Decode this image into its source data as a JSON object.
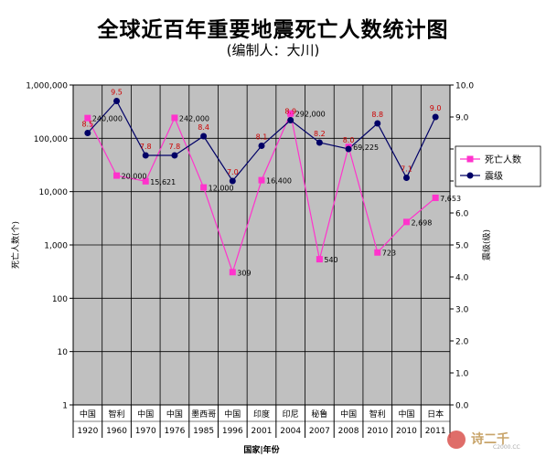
{
  "title": "全球近百年重要地震死亡人数统计图",
  "subtitle": "(编制人：大川)",
  "watermark": {
    "text": "诗二千",
    "sub": "C2000.CC"
  },
  "chart_data": {
    "type": "line",
    "x_axis_label": "国家|年份",
    "categories": [
      {
        "country": "中国",
        "year": "1920"
      },
      {
        "country": "智利",
        "year": "1960"
      },
      {
        "country": "中国",
        "year": "1970"
      },
      {
        "country": "中国",
        "year": "1976"
      },
      {
        "country": "墨西哥",
        "year": "1985"
      },
      {
        "country": "中国",
        "year": "1996"
      },
      {
        "country": "印度",
        "year": "2001"
      },
      {
        "country": "印尼",
        "year": "2004"
      },
      {
        "country": "秘鲁",
        "year": "2007"
      },
      {
        "country": "中国",
        "year": "2008"
      },
      {
        "country": "智利",
        "year": "2010"
      },
      {
        "country": "中国",
        "year": "2010"
      },
      {
        "country": "日本",
        "year": "2011"
      }
    ],
    "left_axis": {
      "label": "死亡人数(个)",
      "scale": "log",
      "ticks": [
        "1",
        "10",
        "100",
        "1,000",
        "10,000",
        "100,000",
        "1,000,000"
      ],
      "range": [
        1,
        1000000
      ]
    },
    "right_axis": {
      "label": "震级(级)",
      "scale": "linear",
      "ticks": [
        "0.0",
        "1.0",
        "2.0",
        "3.0",
        "4.0",
        "5.0",
        "6.0",
        "7.0",
        "8.0",
        "9.0",
        "10.0"
      ],
      "range": [
        0,
        10
      ]
    },
    "series": [
      {
        "name": "死亡人数",
        "axis": "left",
        "color": "#ff33cc",
        "marker": "square",
        "values": [
          240000,
          20000,
          15621,
          242000,
          12000,
          309,
          16400,
          292000,
          540,
          69225,
          723,
          2698,
          7653
        ],
        "labels": [
          "240,000",
          "20,000",
          "15,621",
          "242,000",
          "12,000",
          "309",
          "16,400",
          "292,000",
          "540",
          "69,225",
          "723",
          "2,698",
          "7,653"
        ]
      },
      {
        "name": "震级",
        "axis": "right",
        "color": "#000066",
        "marker": "circle",
        "values": [
          8.5,
          9.5,
          7.8,
          7.8,
          8.4,
          7.0,
          8.1,
          8.9,
          8.2,
          8.0,
          8.8,
          7.1,
          9.0
        ],
        "labels": [
          "8.5",
          "9.5",
          "7.8",
          "7.8",
          "8.4",
          "7.0",
          "8.1",
          "8.9",
          "8.2",
          "8.0",
          "8.8",
          "7.1",
          "9.0"
        ],
        "label_color": "#cc0000"
      }
    ],
    "plot_background": "#c0c0c0",
    "grid": true,
    "legend_position": "right"
  }
}
